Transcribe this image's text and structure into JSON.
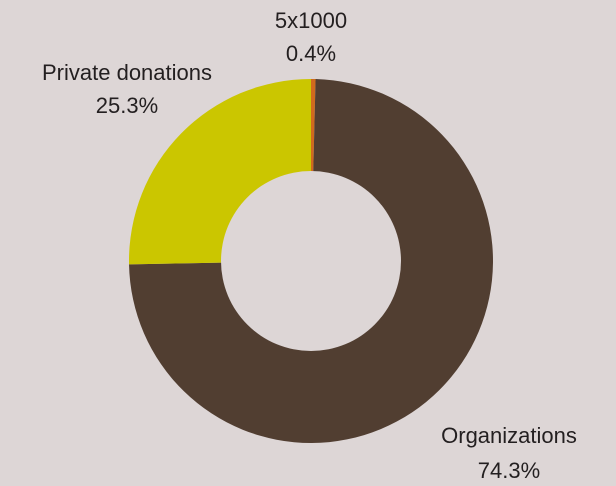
{
  "chart_data": {
    "type": "pie",
    "donut": true,
    "title": "",
    "legend": "none",
    "slices": [
      {
        "label": "5x1000",
        "value_label": "0.4%",
        "value": 0.4,
        "color": "#d06a1e"
      },
      {
        "label": "Organizations",
        "value_label": "74.3%",
        "value": 74.3,
        "color": "#513e31"
      },
      {
        "label": "Private donations",
        "value_label": "25.3%",
        "value": 25.3,
        "color": "#cbc600"
      }
    ]
  },
  "colors": {
    "background": "#ddd6d6",
    "hole": "#ddd6d6"
  }
}
